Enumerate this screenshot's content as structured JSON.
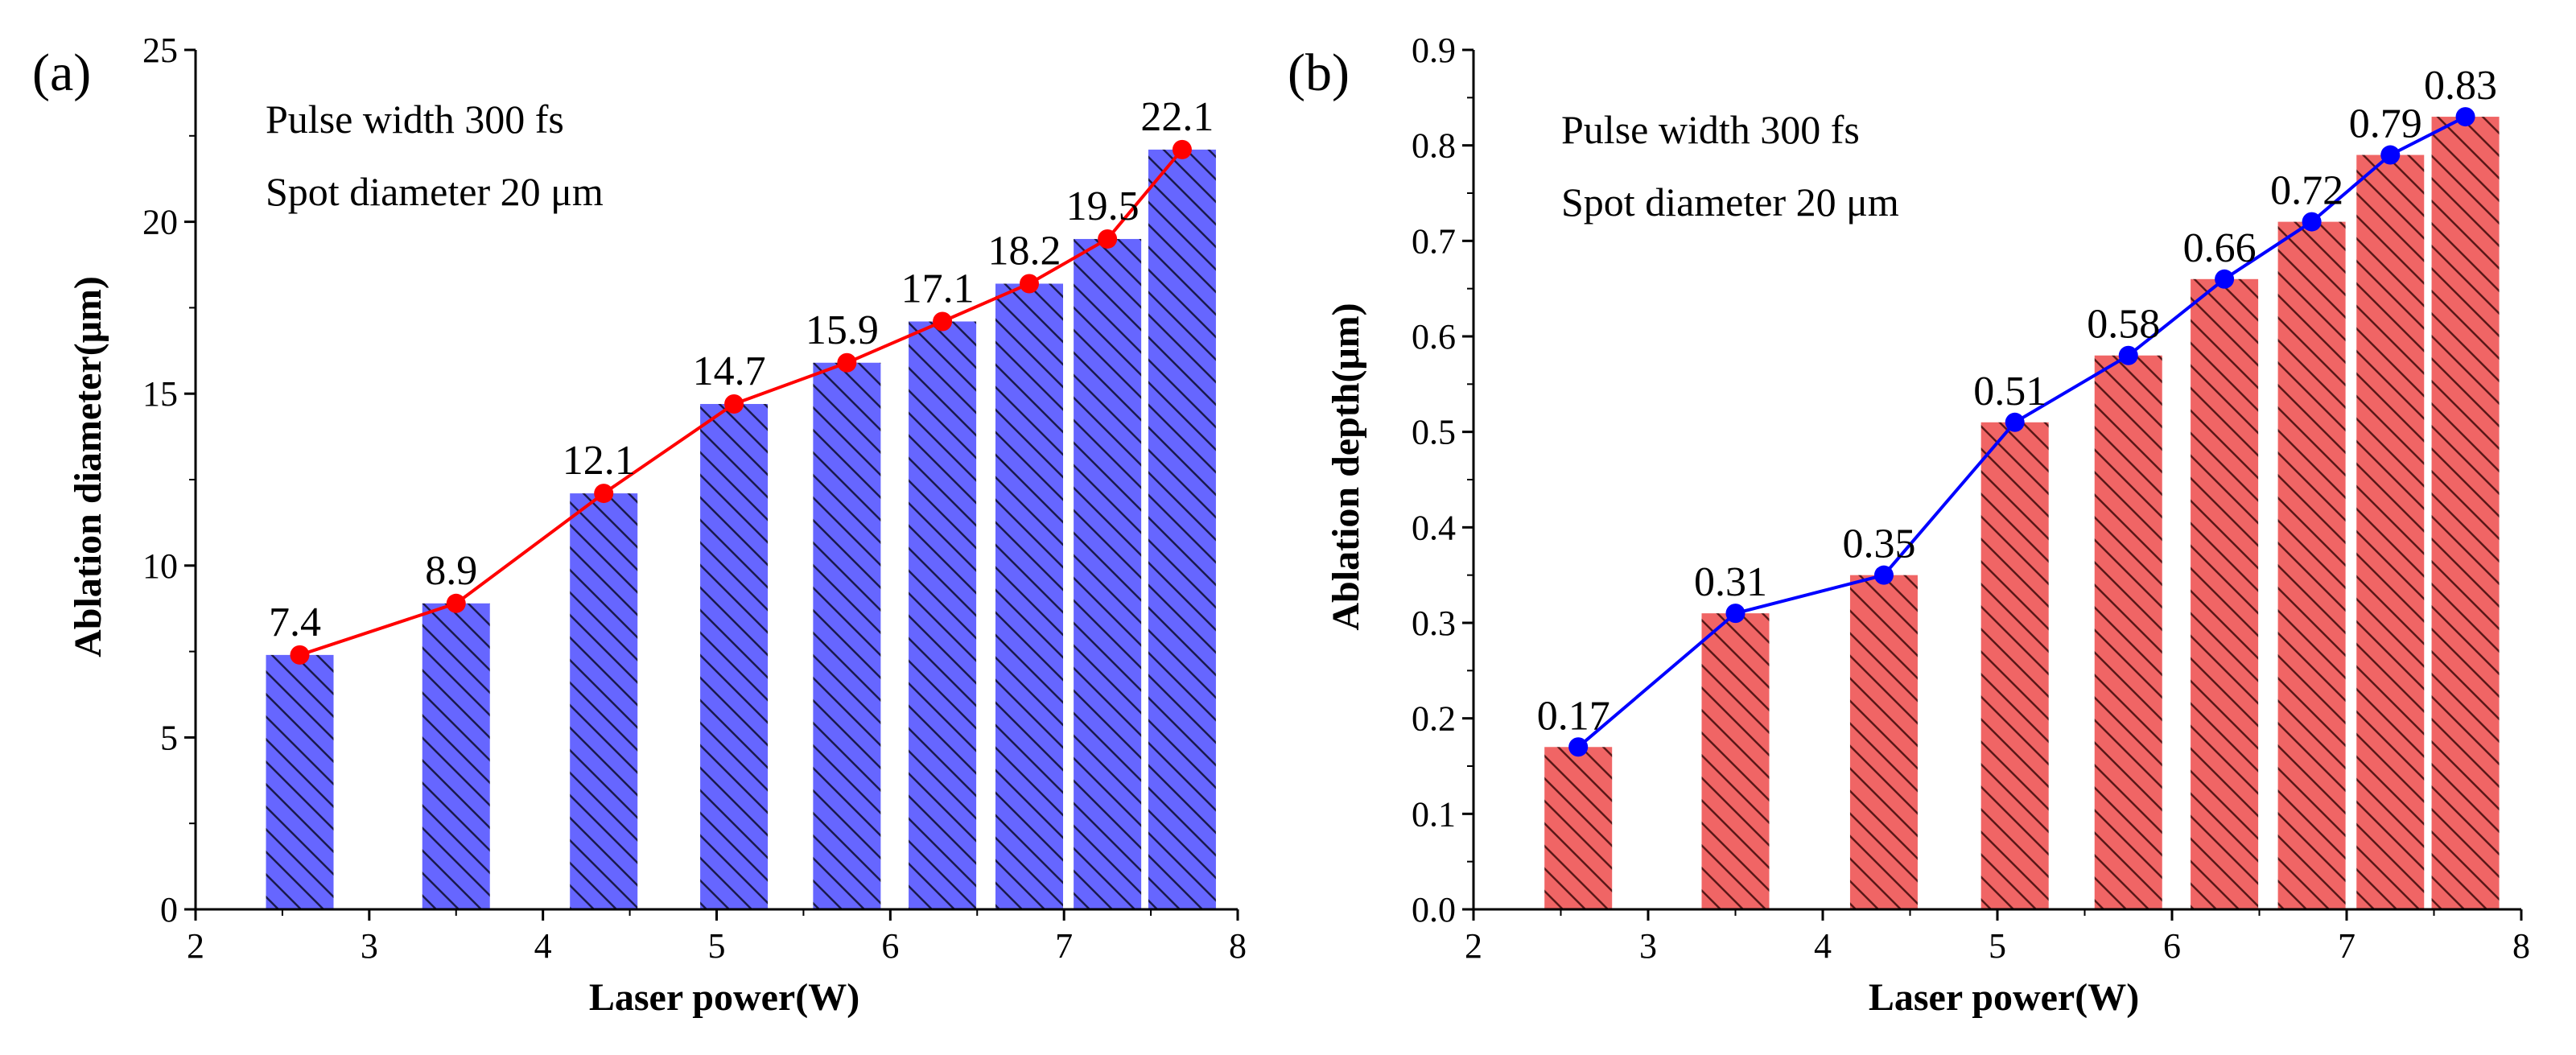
{
  "chart_data": [
    {
      "type": "bar",
      "panel_label": "(a)",
      "x": [
        2.6,
        3.5,
        4.35,
        5.1,
        5.75,
        6.3,
        6.8,
        7.25,
        7.68
      ],
      "values": [
        7.4,
        8.9,
        12.1,
        14.7,
        15.9,
        17.1,
        18.2,
        19.5,
        22.1
      ],
      "data_labels": [
        "7.4",
        "8.9",
        "12.1",
        "14.7",
        "15.9",
        "17.1",
        "18.2",
        "19.5",
        "22.1"
      ],
      "overlay_line": true,
      "xlabel": "Laser power(W)",
      "ylabel": "Ablation diameter(μm)",
      "xlim": [
        2,
        8
      ],
      "ylim": [
        0,
        25
      ],
      "xticks": [
        "2",
        "3",
        "4",
        "5",
        "6",
        "7",
        "8"
      ],
      "yticks": [
        "0",
        "5",
        "10",
        "15",
        "20",
        "25"
      ],
      "annotations": [
        "Pulse width 300 fs",
        "Spot diameter 20 μm"
      ],
      "bar_color": "#6666ff",
      "bar_pattern": "backward-diagonal hatch",
      "line_color": "#ff0000",
      "grid": false,
      "legend": "none"
    },
    {
      "type": "bar",
      "panel_label": "(b)",
      "x": [
        2.6,
        3.5,
        4.35,
        5.1,
        5.75,
        6.3,
        6.8,
        7.25,
        7.68
      ],
      "values": [
        0.17,
        0.31,
        0.35,
        0.51,
        0.58,
        0.66,
        0.72,
        0.79,
        0.83
      ],
      "data_labels": [
        "0.17",
        "0.31",
        "0.35",
        "0.51",
        "0.58",
        "0.66",
        "0.72",
        "0.79",
        "0.83"
      ],
      "overlay_line": true,
      "xlabel": "Laser power(W)",
      "ylabel": "Ablation depth(μm)",
      "xlim": [
        2,
        8
      ],
      "ylim": [
        0,
        0.9
      ],
      "xticks": [
        "2",
        "3",
        "4",
        "5",
        "6",
        "7",
        "8"
      ],
      "yticks": [
        "0.0",
        "0.1",
        "0.2",
        "0.3",
        "0.4",
        "0.5",
        "0.6",
        "0.7",
        "0.8",
        "0.9"
      ],
      "annotations": [
        "Pulse width 300 fs",
        "Spot diameter 20 μm"
      ],
      "bar_color": "#f06565",
      "bar_pattern": "backward-diagonal hatch",
      "line_color": "#0000ff",
      "grid": false,
      "legend": "none"
    }
  ]
}
